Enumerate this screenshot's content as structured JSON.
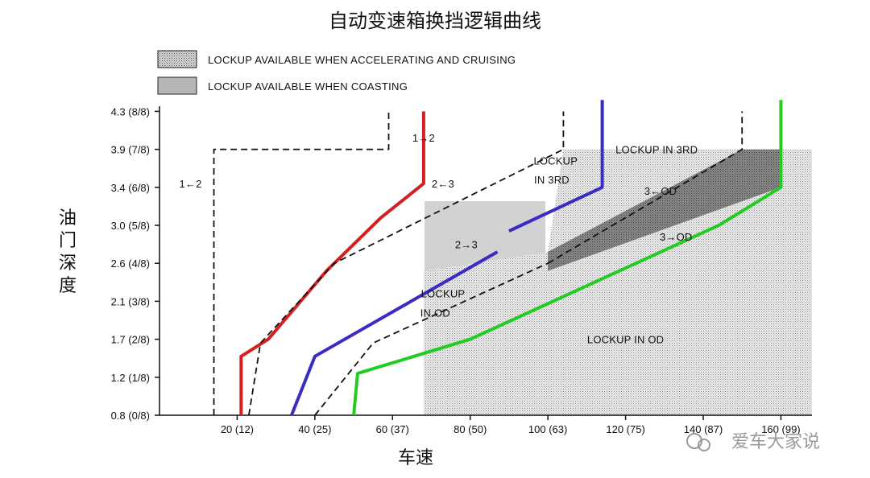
{
  "chart_data": {
    "type": "line",
    "title": "自动变速箱换挡逻辑曲线",
    "xlabel": "车速",
    "ylabel": "油门深度",
    "x_ticks": [
      "20 (12)",
      "40 (25)",
      "60 (37)",
      "80 (50)",
      "100 (63)",
      "120 (75)",
      "140 (87)",
      "160 (99)"
    ],
    "x_tick_values": [
      20,
      40,
      60,
      80,
      100,
      120,
      140,
      160
    ],
    "y_ticks": [
      "0.8 (0/8)",
      "1.2 (1/8)",
      "1.7 (2/8)",
      "2.1 (3/8)",
      "2.6 (4/8)",
      "3.0 (5/8)",
      "3.4 (6/8)",
      "3.9 (7/8)",
      "4.3 (8/8)"
    ],
    "y_tick_values": [
      0,
      1,
      2,
      3,
      4,
      5,
      6,
      7,
      8
    ],
    "xlim": [
      0,
      168
    ],
    "ylim": [
      0,
      8.3
    ],
    "grid": false,
    "legend": {
      "placement": "top-left",
      "entries": [
        {
          "label": "LOCKUP AVAILABLE WHEN ACCELERATING AND CRUISING",
          "pattern": "light-stipple"
        },
        {
          "label": "LOCKUP AVAILABLE WHEN COASTING",
          "pattern": "dark-stipple"
        }
      ]
    },
    "series": [
      {
        "name": "1→2",
        "style": "solid",
        "color": "#d42020",
        "x": [
          21,
          21,
          28,
          43,
          57,
          68,
          68
        ],
        "y": [
          0,
          1.55,
          2,
          3.8,
          5.2,
          6.1,
          8
        ]
      },
      {
        "name": "1←2",
        "style": "dashed",
        "color": "#111111",
        "x": [
          14,
          14,
          59,
          59
        ],
        "y": [
          0,
          7,
          7,
          8
        ]
      },
      {
        "name": "2→3",
        "style": "solid",
        "color": "#3a2cc0",
        "x": [
          34,
          40,
          87,
          87
        ],
        "y": [
          0,
          1.55,
          4.3,
          4.3
        ]
      },
      {
        "name": "2→3 upper",
        "style": "solid",
        "color": "#3a2cc0",
        "x": [
          90,
          114,
          114
        ],
        "y": [
          4.85,
          6,
          8.3
        ]
      },
      {
        "name": "2←3",
        "style": "dashed",
        "color": "#111111",
        "x": [
          23,
          26,
          45,
          104,
          104
        ],
        "y": [
          0,
          1.9,
          4,
          7,
          8
        ]
      },
      {
        "name": "3→OD",
        "style": "solid",
        "color": "#23cc23",
        "x": [
          50,
          51,
          80,
          144,
          160,
          160
        ],
        "y": [
          0,
          1.1,
          2,
          5,
          6,
          8.3
        ]
      },
      {
        "name": "2←3 dashed lower",
        "style": "dashed",
        "color": "#111111",
        "x": [
          40,
          55,
          100
        ],
        "y": [
          0,
          1.9,
          4
        ]
      },
      {
        "name": "3←OD",
        "style": "dashed",
        "color": "#111111",
        "x": [
          100,
          150,
          150
        ],
        "y": [
          4,
          7,
          8
        ]
      }
    ],
    "regions": [
      {
        "name": "accelerating-cruising",
        "fill": "light",
        "x": [
          68,
          68,
          100,
          104,
          168,
          168
        ],
        "y": [
          0,
          3.8,
          4.3,
          7,
          7,
          0
        ]
      },
      {
        "name": "coasting",
        "fill": "dark",
        "x": [
          100,
          100,
          150,
          160,
          160
        ],
        "y": [
          3.8,
          4.3,
          7,
          7,
          6
        ]
      }
    ],
    "annotations": [
      {
        "text": "1→2",
        "x": 68,
        "y": 7.2
      },
      {
        "text": "1←2",
        "x": 8,
        "y": 6
      },
      {
        "text": "2←3",
        "x": 73,
        "y": 6
      },
      {
        "text": "2→3",
        "x": 79,
        "y": 4.4
      },
      {
        "text": "LOCKUP",
        "x": 102,
        "y": 6.6
      },
      {
        "text": "IN 3RD",
        "x": 101,
        "y": 6.1
      },
      {
        "text": "LOCKUP IN 3RD",
        "x": 128,
        "y": 6.9
      },
      {
        "text": "3←OD",
        "x": 129,
        "y": 5.8
      },
      {
        "text": "3→OD",
        "x": 133,
        "y": 4.6
      },
      {
        "text": "LOCKUP",
        "x": 73,
        "y": 3.1
      },
      {
        "text": "IN OD",
        "x": 71,
        "y": 2.6
      },
      {
        "text": "LOCKUP IN OD",
        "x": 120,
        "y": 1.9
      }
    ]
  },
  "watermark": "爱车大家说"
}
